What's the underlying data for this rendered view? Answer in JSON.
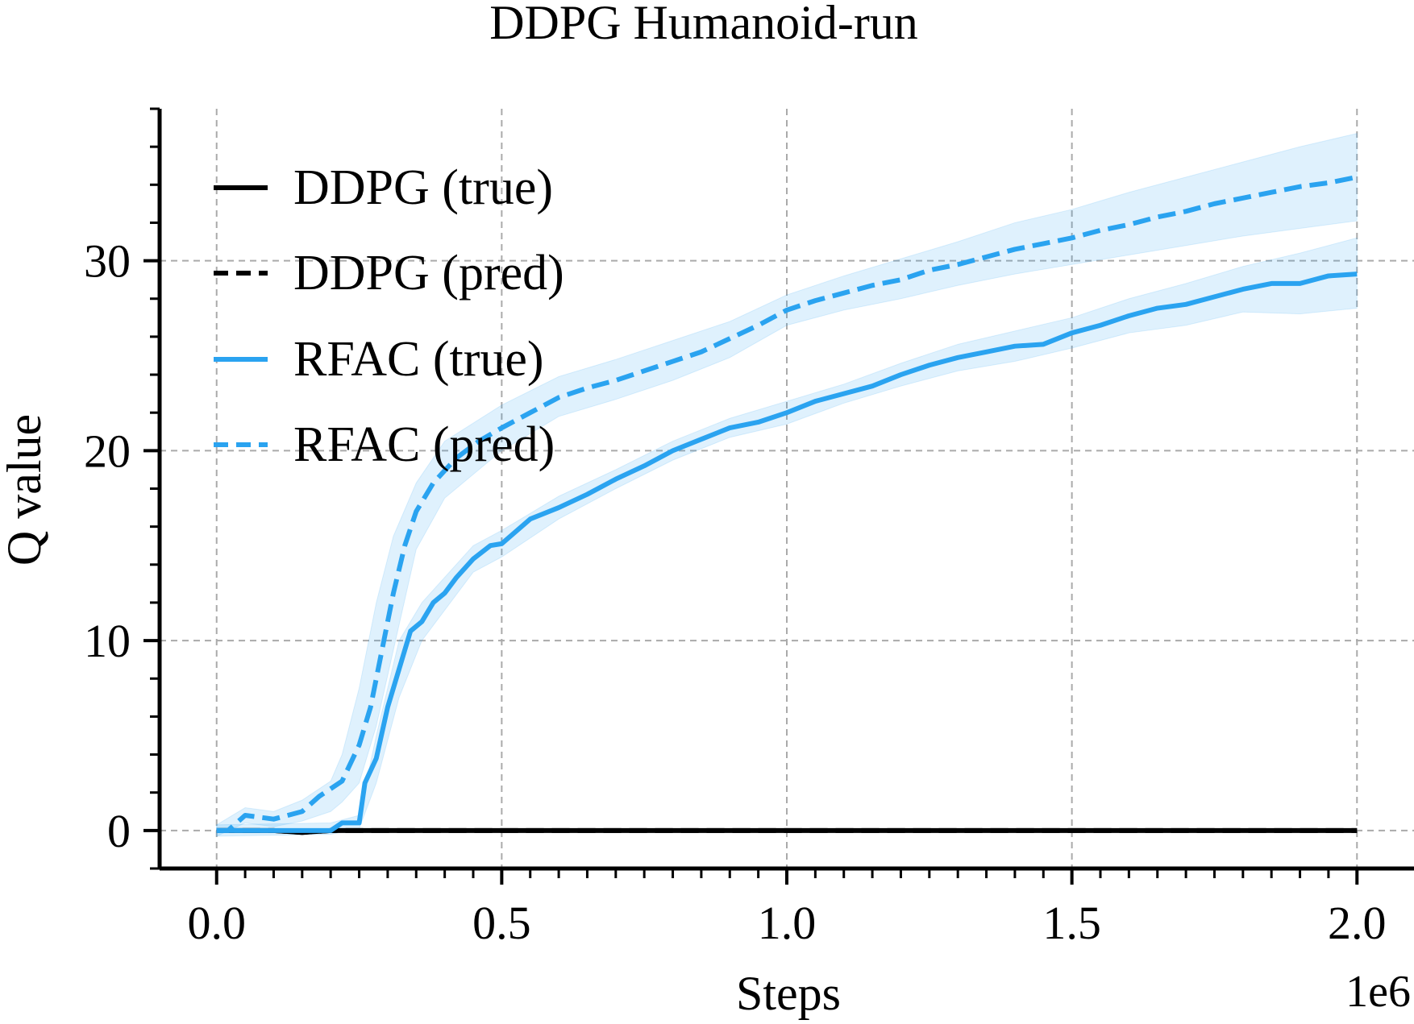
{
  "chart_data": {
    "type": "line",
    "title": "DDPG Humanoid-run",
    "xlabel": "Steps",
    "ylabel": "Q value",
    "x_offset_label": "1e6",
    "xlim": [
      -0.1,
      2.1
    ],
    "ylim": [
      -2,
      38
    ],
    "x_ticks": [
      0.0,
      0.5,
      1.0,
      1.5,
      2.0
    ],
    "x_tick_labels": [
      "0.0",
      "0.5",
      "1.0",
      "1.5",
      "2.0"
    ],
    "y_ticks": [
      0,
      10,
      20,
      30
    ],
    "y_tick_labels": [
      "0",
      "10",
      "20",
      "30"
    ],
    "grid": true,
    "legend_position": "upper-left",
    "series": [
      {
        "name": "DDPG (true)",
        "color": "#000000",
        "style": "solid",
        "points": [
          [
            0.0,
            0
          ],
          [
            0.1,
            0
          ],
          [
            0.15,
            -0.1
          ],
          [
            0.2,
            0
          ],
          [
            0.5,
            0
          ],
          [
            1.0,
            0
          ],
          [
            1.5,
            0
          ],
          [
            2.0,
            0
          ]
        ]
      },
      {
        "name": "DDPG (pred)",
        "color": "#000000",
        "style": "dashed",
        "points": [
          [
            0.0,
            0
          ],
          [
            0.1,
            0
          ],
          [
            0.15,
            -0.1
          ],
          [
            0.2,
            0
          ],
          [
            0.5,
            0
          ],
          [
            1.0,
            0
          ],
          [
            1.5,
            0
          ],
          [
            2.0,
            0
          ]
        ]
      },
      {
        "name": "RFAC (true)",
        "color": "#2aa3f0",
        "style": "solid",
        "points": [
          [
            0.0,
            0
          ],
          [
            0.1,
            0
          ],
          [
            0.2,
            0
          ],
          [
            0.22,
            0.4
          ],
          [
            0.25,
            0.4
          ],
          [
            0.26,
            2.5
          ],
          [
            0.28,
            3.8
          ],
          [
            0.3,
            6.5
          ],
          [
            0.32,
            8.5
          ],
          [
            0.34,
            10.5
          ],
          [
            0.36,
            11.0
          ],
          [
            0.38,
            12.0
          ],
          [
            0.4,
            12.5
          ],
          [
            0.42,
            13.3
          ],
          [
            0.45,
            14.3
          ],
          [
            0.48,
            15.0
          ],
          [
            0.5,
            15.1
          ],
          [
            0.55,
            16.4
          ],
          [
            0.6,
            17.0
          ],
          [
            0.65,
            17.7
          ],
          [
            0.7,
            18.5
          ],
          [
            0.75,
            19.2
          ],
          [
            0.8,
            20.0
          ],
          [
            0.85,
            20.6
          ],
          [
            0.9,
            21.2
          ],
          [
            0.95,
            21.5
          ],
          [
            1.0,
            22.0
          ],
          [
            1.05,
            22.6
          ],
          [
            1.1,
            23.0
          ],
          [
            1.15,
            23.4
          ],
          [
            1.2,
            24.0
          ],
          [
            1.25,
            24.5
          ],
          [
            1.3,
            24.9
          ],
          [
            1.35,
            25.2
          ],
          [
            1.4,
            25.5
          ],
          [
            1.45,
            25.6
          ],
          [
            1.5,
            26.2
          ],
          [
            1.55,
            26.6
          ],
          [
            1.6,
            27.1
          ],
          [
            1.65,
            27.5
          ],
          [
            1.7,
            27.7
          ],
          [
            1.75,
            28.1
          ],
          [
            1.8,
            28.5
          ],
          [
            1.85,
            28.8
          ],
          [
            1.9,
            28.8
          ],
          [
            1.95,
            29.2
          ],
          [
            2.0,
            29.3
          ]
        ]
      },
      {
        "name": "RFAC (pred)",
        "color": "#2aa3f0",
        "style": "dashed",
        "points": [
          [
            0.0,
            0
          ],
          [
            0.02,
            0
          ],
          [
            0.05,
            0.8
          ],
          [
            0.1,
            0.6
          ],
          [
            0.15,
            1.0
          ],
          [
            0.18,
            1.8
          ],
          [
            0.22,
            2.6
          ],
          [
            0.25,
            4.5
          ],
          [
            0.27,
            6.5
          ],
          [
            0.29,
            9.5
          ],
          [
            0.31,
            12.5
          ],
          [
            0.33,
            15.0
          ],
          [
            0.35,
            16.8
          ],
          [
            0.38,
            18.3
          ],
          [
            0.42,
            19.6
          ],
          [
            0.46,
            20.5
          ],
          [
            0.5,
            21.2
          ],
          [
            0.55,
            22.0
          ],
          [
            0.6,
            22.8
          ],
          [
            0.65,
            23.3
          ],
          [
            0.7,
            23.7
          ],
          [
            0.75,
            24.2
          ],
          [
            0.8,
            24.7
          ],
          [
            0.85,
            25.2
          ],
          [
            0.9,
            25.9
          ],
          [
            0.95,
            26.6
          ],
          [
            1.0,
            27.4
          ],
          [
            1.05,
            27.9
          ],
          [
            1.1,
            28.3
          ],
          [
            1.15,
            28.7
          ],
          [
            1.2,
            29.0
          ],
          [
            1.25,
            29.5
          ],
          [
            1.3,
            29.8
          ],
          [
            1.35,
            30.2
          ],
          [
            1.4,
            30.6
          ],
          [
            1.45,
            30.9
          ],
          [
            1.5,
            31.2
          ],
          [
            1.55,
            31.6
          ],
          [
            1.6,
            31.9
          ],
          [
            1.65,
            32.3
          ],
          [
            1.7,
            32.6
          ],
          [
            1.75,
            33.0
          ],
          [
            1.8,
            33.3
          ],
          [
            1.85,
            33.6
          ],
          [
            1.9,
            33.9
          ],
          [
            1.95,
            34.1
          ],
          [
            2.0,
            34.4
          ]
        ]
      }
    ],
    "bands": [
      {
        "series": "RFAC (true)",
        "color": "#2aa3f0",
        "upper": [
          [
            0.0,
            0.3
          ],
          [
            0.2,
            0.4
          ],
          [
            0.25,
            0.8
          ],
          [
            0.28,
            5.0
          ],
          [
            0.32,
            10.0
          ],
          [
            0.36,
            12.0
          ],
          [
            0.45,
            15.0
          ],
          [
            0.5,
            15.8
          ],
          [
            0.6,
            17.6
          ],
          [
            0.7,
            19.0
          ],
          [
            0.8,
            20.5
          ],
          [
            0.9,
            21.7
          ],
          [
            1.0,
            22.6
          ],
          [
            1.1,
            23.5
          ],
          [
            1.2,
            24.6
          ],
          [
            1.3,
            25.6
          ],
          [
            1.4,
            26.3
          ],
          [
            1.5,
            27.0
          ],
          [
            1.6,
            28.0
          ],
          [
            1.7,
            28.8
          ],
          [
            1.8,
            29.7
          ],
          [
            1.9,
            30.4
          ],
          [
            2.0,
            31.2
          ]
        ],
        "lower": [
          [
            0.0,
            -0.3
          ],
          [
            0.2,
            -0.2
          ],
          [
            0.25,
            0.1
          ],
          [
            0.28,
            2.5
          ],
          [
            0.32,
            7.0
          ],
          [
            0.36,
            10.0
          ],
          [
            0.45,
            13.6
          ],
          [
            0.5,
            14.4
          ],
          [
            0.6,
            16.4
          ],
          [
            0.7,
            18.0
          ],
          [
            0.8,
            19.5
          ],
          [
            0.9,
            20.7
          ],
          [
            1.0,
            21.4
          ],
          [
            1.1,
            22.5
          ],
          [
            1.2,
            23.4
          ],
          [
            1.3,
            24.2
          ],
          [
            1.4,
            24.7
          ],
          [
            1.5,
            25.4
          ],
          [
            1.6,
            26.2
          ],
          [
            1.7,
            26.6
          ],
          [
            1.8,
            27.3
          ],
          [
            1.9,
            27.2
          ],
          [
            2.0,
            27.5
          ]
        ]
      },
      {
        "series": "RFAC (pred)",
        "color": "#2aa3f0",
        "upper": [
          [
            0.0,
            0.3
          ],
          [
            0.05,
            1.2
          ],
          [
            0.1,
            1.0
          ],
          [
            0.15,
            1.6
          ],
          [
            0.2,
            2.6
          ],
          [
            0.22,
            4.0
          ],
          [
            0.25,
            7.5
          ],
          [
            0.28,
            12.0
          ],
          [
            0.31,
            15.5
          ],
          [
            0.35,
            18.3
          ],
          [
            0.4,
            20.5
          ],
          [
            0.5,
            22.4
          ],
          [
            0.6,
            23.9
          ],
          [
            0.7,
            24.8
          ],
          [
            0.8,
            25.8
          ],
          [
            0.9,
            26.8
          ],
          [
            1.0,
            28.2
          ],
          [
            1.1,
            29.2
          ],
          [
            1.2,
            30.1
          ],
          [
            1.3,
            31.0
          ],
          [
            1.4,
            32.0
          ],
          [
            1.5,
            32.7
          ],
          [
            1.6,
            33.6
          ],
          [
            1.7,
            34.4
          ],
          [
            1.8,
            35.2
          ],
          [
            1.9,
            36.0
          ],
          [
            2.0,
            36.7
          ]
        ],
        "lower": [
          [
            0.0,
            -0.3
          ],
          [
            0.05,
            0.4
          ],
          [
            0.1,
            0.2
          ],
          [
            0.15,
            0.5
          ],
          [
            0.2,
            1.0
          ],
          [
            0.22,
            1.5
          ],
          [
            0.25,
            2.5
          ],
          [
            0.28,
            5.5
          ],
          [
            0.31,
            9.5
          ],
          [
            0.35,
            14.8
          ],
          [
            0.4,
            17.5
          ],
          [
            0.5,
            20.0
          ],
          [
            0.6,
            21.8
          ],
          [
            0.7,
            22.7
          ],
          [
            0.8,
            23.7
          ],
          [
            0.9,
            24.9
          ],
          [
            1.0,
            26.6
          ],
          [
            1.1,
            27.4
          ],
          [
            1.2,
            28.0
          ],
          [
            1.3,
            28.7
          ],
          [
            1.4,
            29.3
          ],
          [
            1.5,
            29.8
          ],
          [
            1.6,
            30.3
          ],
          [
            1.7,
            30.8
          ],
          [
            1.8,
            31.3
          ],
          [
            1.9,
            31.7
          ],
          [
            2.0,
            32.1
          ]
        ]
      }
    ]
  }
}
